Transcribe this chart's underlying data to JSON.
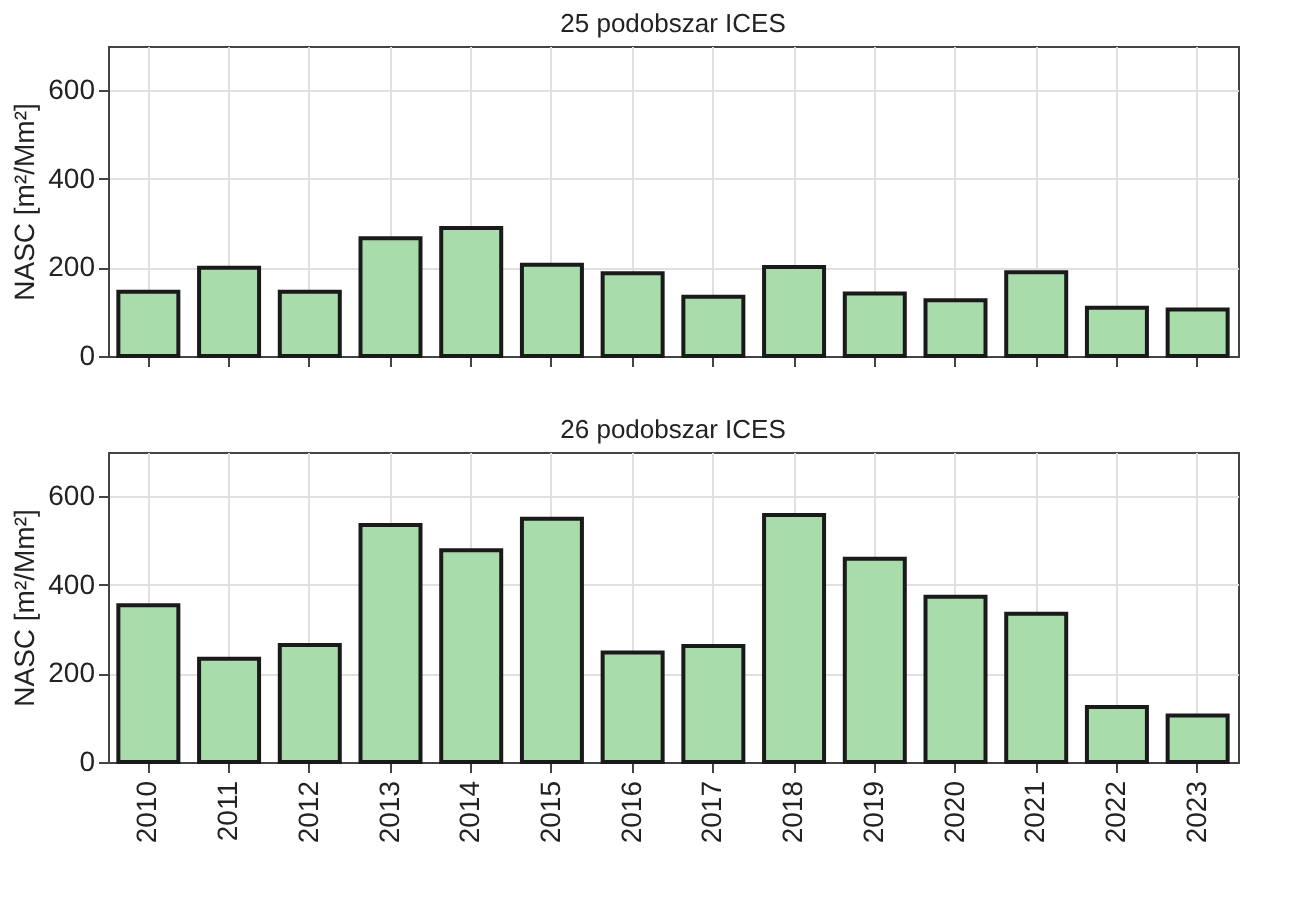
{
  "chart_data": [
    {
      "type": "bar",
      "title": "25 podobszar ICES",
      "ylabel": "NASC [m²/Mm²]",
      "categories": [
        "2010",
        "2011",
        "2012",
        "2013",
        "2014",
        "2015",
        "2016",
        "2017",
        "2018",
        "2019",
        "2020",
        "2021",
        "2022",
        "2023"
      ],
      "series": [
        {
          "values": [
            145,
            199,
            145,
            266,
            289,
            206,
            187,
            134,
            201,
            141,
            126,
            189,
            109,
            105
          ],
          "colors": [
            "#a8dcaa",
            "#a8dcaa",
            "#a8dcaa",
            "#a8dcaa",
            "#a8dcaa",
            "#a8dcaa",
            "#a8dcaa",
            "#a8dcaa",
            "#a8dcaa",
            "#a8dcaa",
            "#a8dcaa",
            "#a8dcaa",
            "#a8dcaa",
            "#a8dcaa"
          ]
        }
      ],
      "ylim": [
        0,
        700
      ],
      "yticks": [
        0,
        200,
        400,
        600
      ],
      "grid": true,
      "tick_labels": "y"
    },
    {
      "type": "bar",
      "title": "26 podobszar ICES",
      "ylabel": "NASC [m²/Mm²]",
      "categories": [
        "2010",
        "2011",
        "2012",
        "2013",
        "2014",
        "2015",
        "2016",
        "2017",
        "2018",
        "2019",
        "2020",
        "2021",
        "2022",
        "2023"
      ],
      "series": [
        {
          "values": [
            354,
            233,
            264,
            535,
            478,
            549,
            247,
            262,
            558,
            459,
            373,
            335,
            124,
            105
          ],
          "colors": [
            "#a8dcaa",
            "#a8dcaa",
            "#a8dcaa",
            "#a8dcaa",
            "#a8dcaa",
            "#a8dcaa",
            "#a8dcaa",
            "#a8dcaa",
            "#a8dcaa",
            "#a8dcaa",
            "#a8dcaa",
            "#a8dcaa",
            "#a8dcaa",
            "#a8dcaa"
          ]
        }
      ],
      "ylim": [
        0,
        700
      ],
      "yticks": [
        0,
        200,
        400,
        600
      ],
      "grid": true
    }
  ]
}
